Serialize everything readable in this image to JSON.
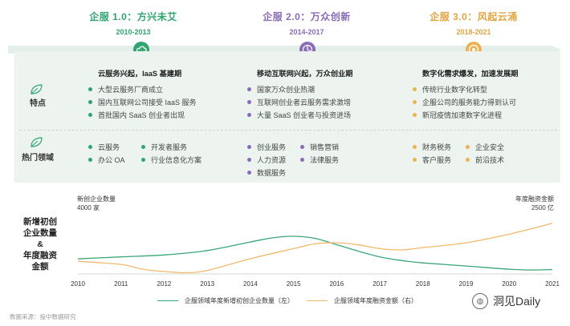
{
  "eras": [
    {
      "title": "企服 1.0：方兴未艾",
      "years": "2010-2013",
      "color": "#2fa56f",
      "icon": "cloud-icon"
    },
    {
      "title": "企服 2.0：万众创新",
      "years": "2014-2017",
      "color": "#8a6bb8",
      "icon": "chart-icon"
    },
    {
      "title": "企服 3.0：风起云涌",
      "years": "2018-2021",
      "color": "#eab253",
      "icon": "target-icon"
    }
  ],
  "row_labels": {
    "features": "特点",
    "hot": "热门领域"
  },
  "columns": [
    {
      "head": "云服务兴起，IaaS 基建期",
      "features": [
        "大型云服务厂商成立",
        "国内互联网公司接受 IaaS 服务",
        "首批国内 SaaS 创业者出现"
      ],
      "hot": [
        "云服务",
        "开发者服务",
        "办公 OA",
        "行业信息化方案"
      ]
    },
    {
      "head": "移动互联网兴起，万众创业期",
      "features": [
        "国家万众创业热潮",
        "互联网创业者云服务需求激增",
        "大量 SaaS 创业者与投资进场"
      ],
      "hot": [
        "创业服务",
        "销售营销",
        "人力资源",
        "法律服务",
        "数据服务"
      ]
    },
    {
      "head": "数字化需求爆发，加速发展期",
      "features": [
        "传统行业数字化转型",
        "企服公司的服务能力得到认可",
        "新冠疫情加速数字化进程"
      ],
      "hot": [
        "财务税务",
        "企业安全",
        "客户服务",
        "前沿技术"
      ]
    }
  ],
  "chart_side_label": [
    "新增初创",
    "企业数量",
    "&",
    "年度融资",
    "金额"
  ],
  "chart_data": {
    "type": "line",
    "x": [
      2010,
      2011,
      2012,
      2013,
      2014,
      2015,
      2016,
      2017,
      2018,
      2019,
      2020,
      2021
    ],
    "x_tick_labels": [
      "2010",
      "2011",
      "2012",
      "2013",
      "2014",
      "2015",
      "2016",
      "2017",
      "2018",
      "2019",
      "2020",
      "2021"
    ],
    "left_axis_label": "新创企业数量",
    "left_axis_max_label": "4000 家",
    "right_axis_label": "年度融资金额",
    "right_axis_max_label": "2500 亿",
    "left_ylim": [
      0,
      4000
    ],
    "right_ylim": [
      0,
      2500
    ],
    "series": [
      {
        "name": "企服领域年度新增初创企业数量（左）",
        "axis": "left",
        "color": "#3aa678",
        "x": [
          2010,
          2011,
          2012,
          2013,
          2014,
          2014.5,
          2015,
          2015.5,
          2016,
          2016.5,
          2017,
          2017.5,
          2018,
          2019,
          2020,
          2020.5,
          2021
        ],
        "values": [
          950,
          1080,
          1200,
          1480,
          2020,
          2280,
          2380,
          2250,
          1850,
          1440,
          1080,
          850,
          700,
          500,
          300,
          250,
          280
        ]
      },
      {
        "name": "企服领域年度融资金额（右）",
        "axis": "right",
        "color": "#f2b96b",
        "x": [
          2010,
          2011,
          2011.5,
          2012,
          2012.5,
          2013,
          2014,
          2015,
          2015.5,
          2016,
          2016.5,
          2017,
          2017.5,
          2018,
          2019,
          2020,
          2021
        ],
        "values": [
          500,
          375,
          190,
          95,
          50,
          140,
          600,
          1000,
          1190,
          1230,
          1150,
          1000,
          950,
          1040,
          1230,
          1570,
          2000
        ]
      }
    ]
  },
  "legend": [
    {
      "label": "企服领域年度新增初创企业数量（左）",
      "color": "#3aa678"
    },
    {
      "label": "企服领域年度融资金额（右）",
      "color": "#f2b96b"
    }
  ],
  "source_text": "数据来源：投中数据研究",
  "brand_name": "洞见Daily"
}
